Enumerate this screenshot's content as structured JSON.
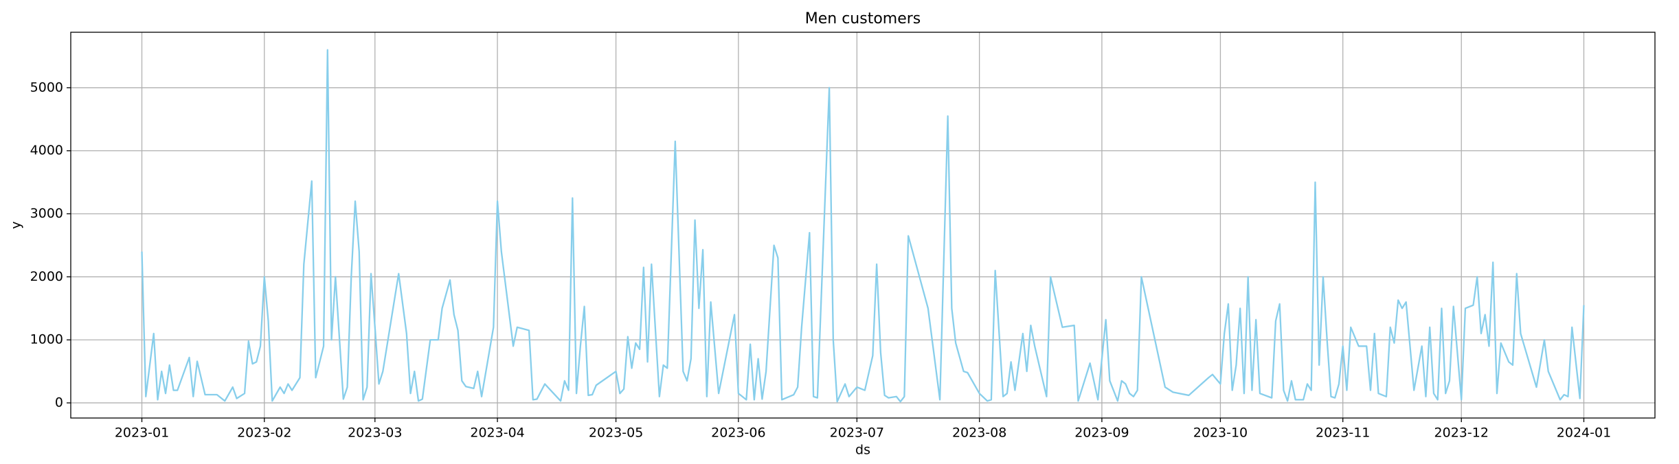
{
  "chart_data": {
    "type": "line",
    "title": "Men customers",
    "xlabel": "ds",
    "ylabel": "y",
    "x": [
      "2023-01-01",
      "2023-01-02",
      "2023-01-04",
      "2023-01-05",
      "2023-01-06",
      "2023-01-07",
      "2023-01-08",
      "2023-01-09",
      "2023-01-10",
      "2023-01-13",
      "2023-01-14",
      "2023-01-15",
      "2023-01-17",
      "2023-01-20",
      "2023-01-22",
      "2023-01-24",
      "2023-01-25",
      "2023-01-27",
      "2023-01-28",
      "2023-01-29",
      "2023-01-30",
      "2023-01-31",
      "2023-02-01",
      "2023-02-02",
      "2023-02-03",
      "2023-02-05",
      "2023-02-06",
      "2023-02-07",
      "2023-02-08",
      "2023-02-10",
      "2023-02-11",
      "2023-02-13",
      "2023-02-14",
      "2023-02-16",
      "2023-02-17",
      "2023-02-18",
      "2023-02-19",
      "2023-02-21",
      "2023-02-22",
      "2023-02-23",
      "2023-02-24",
      "2023-02-25",
      "2023-02-26",
      "2023-02-27",
      "2023-02-28",
      "2023-03-01",
      "2023-03-02",
      "2023-03-03",
      "2023-03-07",
      "2023-03-09",
      "2023-03-10",
      "2023-03-11",
      "2023-03-12",
      "2023-03-13",
      "2023-03-15",
      "2023-03-17",
      "2023-03-18",
      "2023-03-20",
      "2023-03-21",
      "2023-03-22",
      "2023-03-23",
      "2023-03-24",
      "2023-03-26",
      "2023-03-27",
      "2023-03-28",
      "2023-03-31",
      "2023-04-01",
      "2023-04-02",
      "2023-04-05",
      "2023-04-06",
      "2023-04-09",
      "2023-04-10",
      "2023-04-11",
      "2023-04-13",
      "2023-04-17",
      "2023-04-18",
      "2023-04-19",
      "2023-04-20",
      "2023-04-21",
      "2023-04-22",
      "2023-04-23",
      "2023-04-24",
      "2023-04-25",
      "2023-04-26",
      "2023-05-01",
      "2023-05-02",
      "2023-05-03",
      "2023-05-04",
      "2023-05-05",
      "2023-05-06",
      "2023-05-07",
      "2023-05-08",
      "2023-05-09",
      "2023-05-10",
      "2023-05-12",
      "2023-05-13",
      "2023-05-14",
      "2023-05-16",
      "2023-05-18",
      "2023-05-19",
      "2023-05-20",
      "2023-05-21",
      "2023-05-22",
      "2023-05-23",
      "2023-05-24",
      "2023-05-25",
      "2023-05-27",
      "2023-05-31",
      "2023-06-01",
      "2023-06-02",
      "2023-06-03",
      "2023-06-04",
      "2023-06-05",
      "2023-06-06",
      "2023-06-07",
      "2023-06-08",
      "2023-06-10",
      "2023-06-11",
      "2023-06-12",
      "2023-06-15",
      "2023-06-16",
      "2023-06-17",
      "2023-06-19",
      "2023-06-20",
      "2023-06-21",
      "2023-06-24",
      "2023-06-25",
      "2023-06-26",
      "2023-06-28",
      "2023-06-29",
      "2023-07-01",
      "2023-07-03",
      "2023-07-05",
      "2023-07-06",
      "2023-07-07",
      "2023-07-08",
      "2023-07-09",
      "2023-07-11",
      "2023-07-12",
      "2023-07-13",
      "2023-07-14",
      "2023-07-19",
      "2023-07-22",
      "2023-07-24",
      "2023-07-25",
      "2023-07-26",
      "2023-07-28",
      "2023-07-29",
      "2023-08-01",
      "2023-08-03",
      "2023-08-04",
      "2023-08-05",
      "2023-08-07",
      "2023-08-08",
      "2023-08-09",
      "2023-08-10",
      "2023-08-12",
      "2023-08-13",
      "2023-08-14",
      "2023-08-15",
      "2023-08-18",
      "2023-08-19",
      "2023-08-22",
      "2023-08-25",
      "2023-08-26",
      "2023-08-29",
      "2023-08-31",
      "2023-09-01",
      "2023-09-02",
      "2023-09-03",
      "2023-09-05",
      "2023-09-06",
      "2023-09-07",
      "2023-09-08",
      "2023-09-09",
      "2023-09-10",
      "2023-09-11",
      "2023-09-17",
      "2023-09-19",
      "2023-09-23",
      "2023-09-28",
      "2023-09-29",
      "2023-10-01",
      "2023-10-02",
      "2023-10-03",
      "2023-10-04",
      "2023-10-05",
      "2023-10-06",
      "2023-10-07",
      "2023-10-08",
      "2023-10-09",
      "2023-10-10",
      "2023-10-11",
      "2023-10-14",
      "2023-10-15",
      "2023-10-16",
      "2023-10-17",
      "2023-10-18",
      "2023-10-19",
      "2023-10-20",
      "2023-10-22",
      "2023-10-23",
      "2023-10-24",
      "2023-10-25",
      "2023-10-26",
      "2023-10-27",
      "2023-10-28",
      "2023-10-29",
      "2023-10-30",
      "2023-10-31",
      "2023-11-01",
      "2023-11-02",
      "2023-11-03",
      "2023-11-05",
      "2023-11-07",
      "2023-11-08",
      "2023-11-09",
      "2023-11-10",
      "2023-11-12",
      "2023-11-13",
      "2023-11-14",
      "2023-11-15",
      "2023-11-16",
      "2023-11-17",
      "2023-11-19",
      "2023-11-21",
      "2023-11-22",
      "2023-11-23",
      "2023-11-24",
      "2023-11-25",
      "2023-11-26",
      "2023-11-27",
      "2023-11-28",
      "2023-11-29",
      "2023-12-01",
      "2023-12-02",
      "2023-12-04",
      "2023-12-05",
      "2023-12-06",
      "2023-12-07",
      "2023-12-08",
      "2023-12-09",
      "2023-12-10",
      "2023-12-11",
      "2023-12-13",
      "2023-12-14",
      "2023-12-15",
      "2023-12-16",
      "2023-12-20",
      "2023-12-22",
      "2023-12-23",
      "2023-12-26",
      "2023-12-27",
      "2023-12-28",
      "2023-12-29",
      "2023-12-31",
      "2024-01-01"
    ],
    "values": [
      2400,
      100,
      1100,
      50,
      500,
      150,
      600,
      200,
      200,
      720,
      100,
      660,
      130,
      130,
      30,
      250,
      70,
      150,
      980,
      620,
      650,
      900,
      2000,
      1300,
      30,
      250,
      150,
      300,
      200,
      400,
      2200,
      3520,
      400,
      900,
      5600,
      1000,
      2000,
      60,
      250,
      2000,
      3200,
      2400,
      50,
      250,
      2050,
      1200,
      300,
      500,
      2050,
      1100,
      150,
      500,
      30,
      60,
      1000,
      1000,
      1500,
      1950,
      1400,
      1150,
      350,
      260,
      230,
      500,
      100,
      1200,
      3200,
      2400,
      900,
      1200,
      1150,
      50,
      60,
      300,
      30,
      350,
      200,
      3250,
      150,
      900,
      1530,
      120,
      130,
      280,
      500,
      150,
      220,
      1050,
      550,
      950,
      850,
      2150,
      650,
      2200,
      100,
      600,
      550,
      4150,
      500,
      350,
      700,
      2900,
      1500,
      2430,
      100,
      1600,
      150,
      1400,
      150,
      100,
      50,
      930,
      50,
      700,
      60,
      500,
      2500,
      2300,
      50,
      130,
      250,
      1200,
      2700,
      100,
      80,
      5000,
      1000,
      20,
      300,
      100,
      250,
      200,
      750,
      2200,
      800,
      120,
      80,
      100,
      20,
      100,
      2650,
      1500,
      50,
      4550,
      1500,
      950,
      500,
      480,
      150,
      30,
      50,
      2100,
      100,
      150,
      650,
      200,
      1100,
      500,
      1230,
      900,
      100,
      2000,
      1200,
      1230,
      30,
      630,
      50,
      700,
      1320,
      350,
      30,
      350,
      300,
      150,
      100,
      200,
      2000,
      250,
      170,
      120,
      400,
      450,
      300,
      1100,
      1570,
      200,
      600,
      1500,
      150,
      2000,
      200,
      1320,
      150,
      80,
      1300,
      1570,
      200,
      30,
      350,
      50,
      50,
      300,
      200,
      3500,
      600,
      2000,
      1000,
      100,
      80,
      300,
      900,
      200,
      1200,
      900,
      900,
      200,
      1100,
      150,
      100,
      1200,
      950,
      1630,
      1500,
      1600,
      200,
      900,
      100,
      1200,
      150,
      50,
      1500,
      150,
      350,
      1530,
      50,
      1500,
      1550,
      2000,
      1100,
      1400,
      900,
      2230,
      150,
      950,
      650,
      600,
      2050,
      1100,
      250,
      1000,
      500,
      50,
      130,
      100,
      1200,
      70,
      1550
    ],
    "color": "#87ceeb",
    "xlim": [
      "2022-12-14",
      "2024-01-19"
    ],
    "xticks": [
      {
        "value": "2023-01-01",
        "label": "2023-01"
      },
      {
        "value": "2023-02-01",
        "label": "2023-02"
      },
      {
        "value": "2023-03-01",
        "label": "2023-03"
      },
      {
        "value": "2023-04-01",
        "label": "2023-04"
      },
      {
        "value": "2023-05-01",
        "label": "2023-05"
      },
      {
        "value": "2023-06-01",
        "label": "2023-06"
      },
      {
        "value": "2023-07-01",
        "label": "2023-07"
      },
      {
        "value": "2023-08-01",
        "label": "2023-08"
      },
      {
        "value": "2023-09-01",
        "label": "2023-09"
      },
      {
        "value": "2023-10-01",
        "label": "2023-10"
      },
      {
        "value": "2023-11-01",
        "label": "2023-11"
      },
      {
        "value": "2023-12-01",
        "label": "2023-12"
      },
      {
        "value": "2024-01-01",
        "label": "2024-01"
      }
    ],
    "ylim": [
      -240,
      5880
    ],
    "yticks": [
      0,
      1000,
      2000,
      3000,
      4000,
      5000
    ],
    "grid": true
  }
}
